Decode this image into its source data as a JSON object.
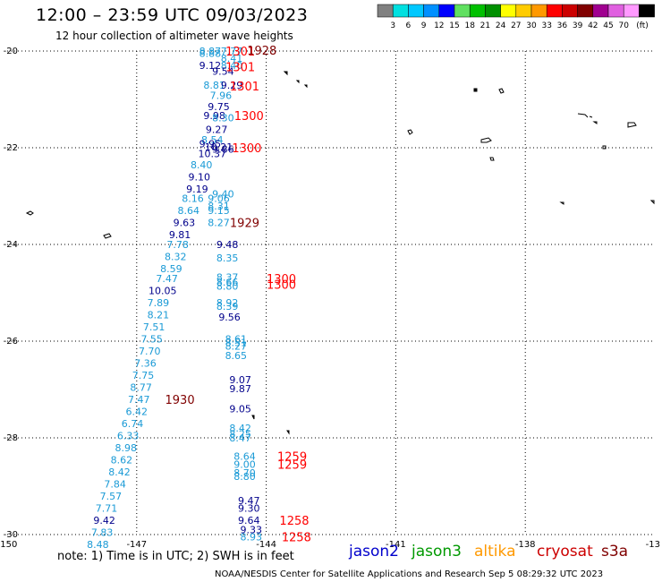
{
  "title": "12:00 – 23:59 UTC 09/03/2023",
  "subtitle": "12 hour collection of altimeter wave heights",
  "note": "note:  1) Time is in UTC;  2) SWH is in feet",
  "credit": "NOAA/NESDIS Center for Satellite Applications and Research    Sep  5 08:29:32 UTC 2023",
  "axes": {
    "lon_range": [
      -150,
      -135
    ],
    "lat_range": [
      -30,
      -20
    ],
    "lon_ticks": [
      "-150",
      "-147",
      "-144",
      "-141",
      "-138",
      "-13"
    ],
    "lat_ticks": [
      "-20",
      "-22",
      "-24",
      "-26",
      "-28",
      "-30"
    ]
  },
  "colorbar": {
    "unit": "(ft)",
    "bins": [
      {
        "color": "#808080",
        "label": ""
      },
      {
        "color": "#00e0e0",
        "label": "3"
      },
      {
        "color": "#00c8ff",
        "label": "6"
      },
      {
        "color": "#0090ff",
        "label": "9"
      },
      {
        "color": "#0000ff",
        "label": "12"
      },
      {
        "color": "#60e060",
        "label": "15"
      },
      {
        "color": "#00c000",
        "label": "18"
      },
      {
        "color": "#009000",
        "label": "21"
      },
      {
        "color": "#ffff00",
        "label": "24"
      },
      {
        "color": "#ffcc00",
        "label": "27"
      },
      {
        "color": "#ff9900",
        "label": "30"
      },
      {
        "color": "#ff0000",
        "label": "33"
      },
      {
        "color": "#cc0000",
        "label": "36"
      },
      {
        "color": "#800000",
        "label": "39"
      },
      {
        "color": "#a00090",
        "label": "42"
      },
      {
        "color": "#e060e0",
        "label": "45"
      },
      {
        "color": "#ff99ff",
        "label": "70"
      },
      {
        "color": "#000000",
        "label": ""
      }
    ]
  },
  "satellites": [
    {
      "name": "jason2",
      "color": "#0000cc"
    },
    {
      "name": "jason3",
      "color": "#009900"
    },
    {
      "name": "altika",
      "color": "#ff9900"
    },
    {
      "name": "cryosat",
      "color": "#cc0000"
    },
    {
      "name": "s3a",
      "color": "#800000"
    }
  ],
  "colors": {
    "light": "#1a9ad6",
    "dark": "#00008b",
    "red": "#ff0000",
    "maroon": "#800000"
  },
  "chart_data": {
    "type": "scatter",
    "unit": "ft",
    "wave_heights": [
      {
        "lon": -145.3,
        "lat": -20.0,
        "v": "8.87",
        "c": "light"
      },
      {
        "lon": -144.8,
        "lat": -20.0,
        "v": "7.77",
        "c": "light"
      },
      {
        "lon": -145.3,
        "lat": -20.05,
        "v": "8.88",
        "c": "light"
      },
      {
        "lon": -144.8,
        "lat": -20.15,
        "v": "8.41",
        "c": "light"
      },
      {
        "lon": -145.3,
        "lat": -20.3,
        "v": "9.12",
        "c": "dark"
      },
      {
        "lon": -144.8,
        "lat": -20.3,
        "v": "8.40",
        "c": "light"
      },
      {
        "lon": -145.0,
        "lat": -20.42,
        "v": "9.54",
        "c": "dark"
      },
      {
        "lon": -145.2,
        "lat": -20.7,
        "v": "8.81",
        "c": "light"
      },
      {
        "lon": -144.8,
        "lat": -20.7,
        "v": "9.29",
        "c": "dark"
      },
      {
        "lon": -145.05,
        "lat": -20.92,
        "v": "7.96",
        "c": "light"
      },
      {
        "lon": -145.1,
        "lat": -21.15,
        "v": "9.75",
        "c": "dark"
      },
      {
        "lon": -145.2,
        "lat": -21.33,
        "v": "9.98",
        "c": "dark"
      },
      {
        "lon": -145.0,
        "lat": -21.38,
        "v": "8.30",
        "c": "light"
      },
      {
        "lon": -145.15,
        "lat": -21.62,
        "v": "9.27",
        "c": "dark"
      },
      {
        "lon": -145.25,
        "lat": -21.83,
        "v": "8.54",
        "c": "light"
      },
      {
        "lon": -145.3,
        "lat": -21.92,
        "v": "9.95",
        "c": "dark"
      },
      {
        "lon": -145.1,
        "lat": -21.98,
        "v": "10.21",
        "c": "dark"
      },
      {
        "lon": -145.0,
        "lat": -22.03,
        "v": "9.86",
        "c": "dark"
      },
      {
        "lon": -145.25,
        "lat": -22.12,
        "v": "10.37",
        "c": "dark"
      },
      {
        "lon": -145.5,
        "lat": -22.35,
        "v": "8.40",
        "c": "light"
      },
      {
        "lon": -145.55,
        "lat": -22.6,
        "v": "9.10",
        "c": "dark"
      },
      {
        "lon": -145.6,
        "lat": -22.85,
        "v": "9.19",
        "c": "dark"
      },
      {
        "lon": -145.0,
        "lat": -22.95,
        "v": "9.40",
        "c": "light"
      },
      {
        "lon": -145.7,
        "lat": -23.05,
        "v": "8.16",
        "c": "light"
      },
      {
        "lon": -145.1,
        "lat": -23.05,
        "v": "9.06",
        "c": "light"
      },
      {
        "lon": -145.1,
        "lat": -23.2,
        "v": "8.31",
        "c": "light"
      },
      {
        "lon": -145.8,
        "lat": -23.3,
        "v": "8.64",
        "c": "light"
      },
      {
        "lon": -145.1,
        "lat": -23.3,
        "v": "9.15",
        "c": "light"
      },
      {
        "lon": -145.9,
        "lat": -23.55,
        "v": "9.63",
        "c": "dark"
      },
      {
        "lon": -145.1,
        "lat": -23.55,
        "v": "8.27",
        "c": "light"
      },
      {
        "lon": -146.0,
        "lat": -23.8,
        "v": "9.81",
        "c": "dark"
      },
      {
        "lon": -146.05,
        "lat": -24.0,
        "v": "7.78",
        "c": "light"
      },
      {
        "lon": -144.9,
        "lat": -24.0,
        "v": "9.48",
        "c": "dark"
      },
      {
        "lon": -146.1,
        "lat": -24.25,
        "v": "8.32",
        "c": "light"
      },
      {
        "lon": -144.9,
        "lat": -24.28,
        "v": "8.35",
        "c": "light"
      },
      {
        "lon": -146.2,
        "lat": -24.5,
        "v": "8.59",
        "c": "light"
      },
      {
        "lon": -146.3,
        "lat": -24.7,
        "v": "7.47",
        "c": "light"
      },
      {
        "lon": -144.9,
        "lat": -24.68,
        "v": "8.37",
        "c": "light"
      },
      {
        "lon": -144.9,
        "lat": -24.78,
        "v": "8.66",
        "c": "light"
      },
      {
        "lon": -144.9,
        "lat": -24.86,
        "v": "8.80",
        "c": "light"
      },
      {
        "lon": -146.4,
        "lat": -24.95,
        "v": "10.05",
        "c": "dark"
      },
      {
        "lon": -146.5,
        "lat": -25.2,
        "v": "7.89",
        "c": "light"
      },
      {
        "lon": -144.9,
        "lat": -25.2,
        "v": "8.92",
        "c": "light"
      },
      {
        "lon": -144.9,
        "lat": -25.28,
        "v": "8.39",
        "c": "light"
      },
      {
        "lon": -146.5,
        "lat": -25.45,
        "v": "8.21",
        "c": "light"
      },
      {
        "lon": -144.85,
        "lat": -25.5,
        "v": "9.56",
        "c": "dark"
      },
      {
        "lon": -146.6,
        "lat": -25.7,
        "v": "7.51",
        "c": "light"
      },
      {
        "lon": -146.65,
        "lat": -25.95,
        "v": "7.55",
        "c": "light"
      },
      {
        "lon": -144.7,
        "lat": -25.95,
        "v": "8.61",
        "c": "light"
      },
      {
        "lon": -144.7,
        "lat": -26.03,
        "v": "8.51",
        "c": "light"
      },
      {
        "lon": -144.7,
        "lat": -26.1,
        "v": "8.27",
        "c": "light"
      },
      {
        "lon": -146.7,
        "lat": -26.2,
        "v": "7.70",
        "c": "light"
      },
      {
        "lon": -144.7,
        "lat": -26.3,
        "v": "8.65",
        "c": "light"
      },
      {
        "lon": -146.8,
        "lat": -26.45,
        "v": "7.36",
        "c": "light"
      },
      {
        "lon": -146.85,
        "lat": -26.7,
        "v": "7.75",
        "c": "light"
      },
      {
        "lon": -144.6,
        "lat": -26.8,
        "v": "9.07",
        "c": "dark"
      },
      {
        "lon": -146.9,
        "lat": -26.95,
        "v": "8.77",
        "c": "light"
      },
      {
        "lon": -144.6,
        "lat": -26.98,
        "v": "9.87",
        "c": "dark"
      },
      {
        "lon": -146.95,
        "lat": -27.2,
        "v": "7.47",
        "c": "light"
      },
      {
        "lon": -147.0,
        "lat": -27.45,
        "v": "6.42",
        "c": "light"
      },
      {
        "lon": -144.6,
        "lat": -27.4,
        "v": "9.05",
        "c": "dark"
      },
      {
        "lon": -147.1,
        "lat": -27.7,
        "v": "6.74",
        "c": "light"
      },
      {
        "lon": -144.6,
        "lat": -27.8,
        "v": "8.42",
        "c": "light"
      },
      {
        "lon": -144.6,
        "lat": -27.92,
        "v": "8.25",
        "c": "light"
      },
      {
        "lon": -147.2,
        "lat": -27.95,
        "v": "6.33",
        "c": "light"
      },
      {
        "lon": -144.6,
        "lat": -28.0,
        "v": "8.47",
        "c": "light"
      },
      {
        "lon": -147.25,
        "lat": -28.2,
        "v": "8.98",
        "c": "light"
      },
      {
        "lon": -147.35,
        "lat": -28.45,
        "v": "8.62",
        "c": "light"
      },
      {
        "lon": -144.5,
        "lat": -28.38,
        "v": "8.64",
        "c": "light"
      },
      {
        "lon": -144.5,
        "lat": -28.55,
        "v": "9.00",
        "c": "light"
      },
      {
        "lon": -147.4,
        "lat": -28.7,
        "v": "8.42",
        "c": "light"
      },
      {
        "lon": -144.5,
        "lat": -28.72,
        "v": "8.70",
        "c": "light"
      },
      {
        "lon": -144.5,
        "lat": -28.8,
        "v": "8.80",
        "c": "light"
      },
      {
        "lon": -147.5,
        "lat": -28.95,
        "v": "7.84",
        "c": "light"
      },
      {
        "lon": -147.6,
        "lat": -29.2,
        "v": "7.57",
        "c": "light"
      },
      {
        "lon": -144.4,
        "lat": -29.3,
        "v": "9.47",
        "c": "dark"
      },
      {
        "lon": -147.7,
        "lat": -29.45,
        "v": "7.71",
        "c": "light"
      },
      {
        "lon": -144.4,
        "lat": -29.45,
        "v": "9.30",
        "c": "dark"
      },
      {
        "lon": -147.75,
        "lat": -29.7,
        "v": "9.42",
        "c": "dark"
      },
      {
        "lon": -144.4,
        "lat": -29.7,
        "v": "9.64",
        "c": "dark"
      },
      {
        "lon": -147.8,
        "lat": -29.95,
        "v": "7.83",
        "c": "light"
      },
      {
        "lon": -144.35,
        "lat": -29.9,
        "v": "9.33",
        "c": "dark"
      },
      {
        "lon": -144.35,
        "lat": -30.05,
        "v": "8.93",
        "c": "light"
      },
      {
        "lon": -147.9,
        "lat": -30.2,
        "v": "8.48",
        "c": "light"
      }
    ],
    "times": [
      {
        "lon": -144.6,
        "lat": -20.0,
        "v": "1301",
        "c": "red"
      },
      {
        "lon": -144.1,
        "lat": -19.98,
        "v": "1928",
        "c": "maroon"
      },
      {
        "lon": -144.6,
        "lat": -20.32,
        "v": "1301",
        "c": "red"
      },
      {
        "lon": -144.5,
        "lat": -20.72,
        "v": "1301",
        "c": "red"
      },
      {
        "lon": -144.4,
        "lat": -21.33,
        "v": "1300",
        "c": "red"
      },
      {
        "lon": -144.45,
        "lat": -22.0,
        "v": "1300",
        "c": "red"
      },
      {
        "lon": -144.5,
        "lat": -23.55,
        "v": "1929",
        "c": "maroon"
      },
      {
        "lon": -143.65,
        "lat": -24.7,
        "v": "1300",
        "c": "red"
      },
      {
        "lon": -143.65,
        "lat": -24.82,
        "v": "1300",
        "c": "red"
      },
      {
        "lon": -146.0,
        "lat": -27.2,
        "v": "1930",
        "c": "maroon"
      },
      {
        "lon": -143.4,
        "lat": -28.38,
        "v": "1259",
        "c": "red"
      },
      {
        "lon": -143.4,
        "lat": -28.55,
        "v": "1259",
        "c": "red"
      },
      {
        "lon": -143.35,
        "lat": -29.7,
        "v": "1258",
        "c": "red"
      },
      {
        "lon": -143.3,
        "lat": -30.05,
        "v": "1258",
        "c": "red"
      }
    ]
  }
}
